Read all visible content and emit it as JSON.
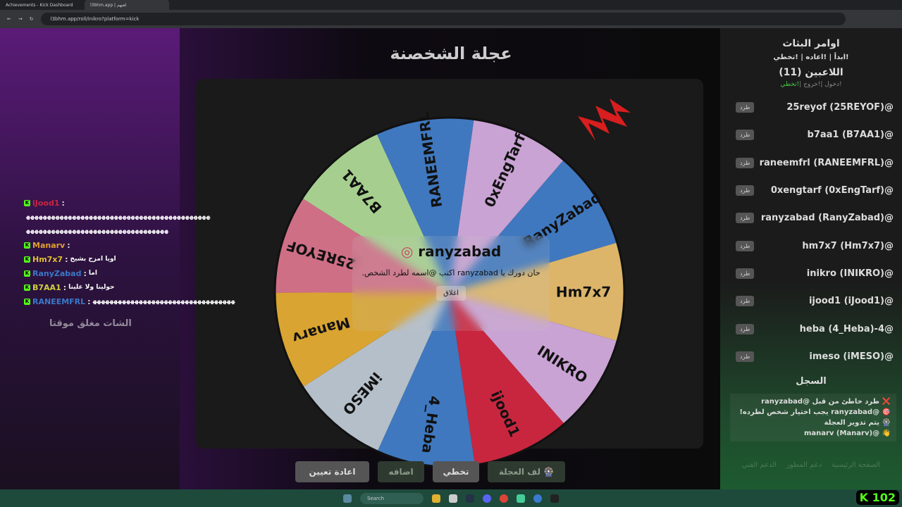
{
  "browser": {
    "tabs": [
      {
        "label": "Achievements - Kick Dashboard"
      },
      {
        "label": "l3bhm.app | لعبهم"
      }
    ],
    "url": "l3bhm.app/roll/inikro?platform=kick"
  },
  "main": {
    "title": "عجلة الشخصنة",
    "wheel": {
      "segments": [
        {
          "name": "RANEEMFRL",
          "color": "#3f78bf"
        },
        {
          "name": "0xEngTarf",
          "color": "#c9a3d3"
        },
        {
          "name": "RanyZabad",
          "color": "#3f78bf"
        },
        {
          "name": "Hm7x7",
          "color": "#dcb56a"
        },
        {
          "name": "INIKRO",
          "color": "#c9a3d3"
        },
        {
          "name": "ijood1",
          "color": "#c8263f"
        },
        {
          "name": "4_Heba",
          "color": "#3f78bf"
        },
        {
          "name": "iMESO",
          "color": "#b4bfc9"
        },
        {
          "name": "Manarv",
          "color": "#d9a431"
        },
        {
          "name": "25REYOF",
          "color": "#cf6f86"
        },
        {
          "name": "B7AA1",
          "color": "#a6cf8f"
        }
      ]
    },
    "popup": {
      "name": "ranyzabad",
      "message": "حان دورك يا ranyzabad اكتب @اسمه لطرد الشخص.",
      "close": "اغلاق",
      "icon": "target-icon"
    },
    "buttons": {
      "spin": "لف العجلة",
      "skip": "تخطي",
      "add": "اضافه",
      "reset": "اعادة تعيين"
    }
  },
  "chat": {
    "locked": "الشات مغلق موقتا",
    "messages": [
      {
        "user": "iJood1",
        "color": "#c8263f",
        "text": ""
      },
      {
        "user": "",
        "color": "#fff",
        "text": "ﻬﻬﻬﻬﻬﻬﻬﻬﻬﻬﻬﻬﻬﻬﻬﻬﻬﻬﻬﻬﻬﻬﻬﻬﻬﻬﻬﻬﻬﻬﻬﻬﻬﻬﻬﻬﻬﻬﻬﻬﻬﻬﻬﻬ"
      },
      {
        "user": "",
        "color": "#fff",
        "text": "ﻬﻬﻬﻬﻬﻬﻬﻬﻬﻬﻬﻬﻬﻬﻬﻬﻬﻬﻬﻬﻬﻬﻬﻬﻬﻬﻬﻬﻬﻬﻬﻬﻬﻬ"
      },
      {
        "user": "Manarv",
        "color": "#e0a030",
        "text": ""
      },
      {
        "user": "Hm7x7",
        "color": "#e0c030",
        "text": "اويا امزح بشيخ"
      },
      {
        "user": "RanyZabad",
        "color": "#3a78c8",
        "text": "اما"
      },
      {
        "user": "B7AA1",
        "color": "#d0d040",
        "text": "حولينا ولا علينا"
      },
      {
        "user": "RANEEMFRL",
        "color": "#3a78c8",
        "text": "ﻬﻬﻬﻬﻬﻬﻬﻬﻬﻬﻬﻬﻬﻬﻬﻬﻬﻬﻬﻬﻬﻬﻬﻬﻬﻬﻬﻬﻬﻬﻬﻬﻬﻬ"
      }
    ]
  },
  "sidebar": {
    "commands_title": "اوامر البثاث",
    "commands": "!ابدأ | !اعاده | !تخطي",
    "players_title": "اللاعبين (11)",
    "join": "!دخول |",
    "leave": "!خروج |",
    "skip": "!تخطي",
    "kick_label": "طرد",
    "players": [
      "25reyof (25REYOF)@",
      "b7aa1 (B7AA1)@",
      "raneemfrl (RANEEMFRL)@",
      "0xengtarf (0xEngTarf)@",
      "ranyzabad (RanyZabad)@",
      "hm7x7 (Hm7x7)@",
      "inikro (INIKRO)@",
      "ijood1 (iJood1)@",
      "heba (4_Heba)-4@",
      "imeso (iMESO)@"
    ],
    "log_title": "السجل",
    "log": [
      "❌ طرد خاطئ من قبل @ranyzabad",
      "🎯 @ranyzabad يجب اختيار شخص لطرده!",
      "🎡 يتم تدوير العجلة",
      "👋 @manarv (Manarv)"
    ],
    "footer": [
      "الصفحة الرئيسية",
      "دعم المطور",
      "الدعم الفني"
    ]
  },
  "taskbar": {
    "search": "Search",
    "viewers": "102"
  }
}
